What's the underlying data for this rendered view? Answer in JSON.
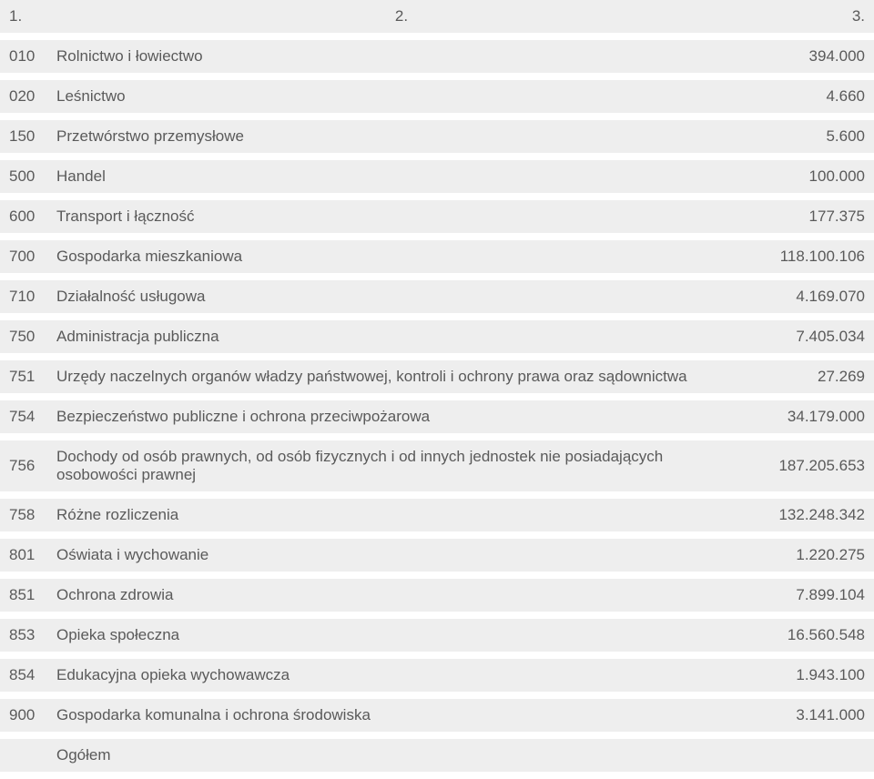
{
  "colors": {
    "row_bg": "#eeeeee",
    "header_bg": "#eeeeee",
    "text": "#5a5a5a",
    "page_bg": "#ffffff"
  },
  "header": {
    "c1": "1.",
    "c2": "2.",
    "c3": "3."
  },
  "rows": [
    {
      "code": "010",
      "name": "Rolnictwo i łowiectwo",
      "value": "394.000"
    },
    {
      "code": "020",
      "name": "Leśnictwo",
      "value": "4.660"
    },
    {
      "code": "150",
      "name": "Przetwórstwo przemysłowe",
      "value": "5.600"
    },
    {
      "code": "500",
      "name": "Handel",
      "value": "100.000"
    },
    {
      "code": "600",
      "name": "Transport i łączność",
      "value": "177.375"
    },
    {
      "code": "700",
      "name": "Gospodarka mieszkaniowa",
      "value": "118.100.106"
    },
    {
      "code": "710",
      "name": "Działalność usługowa",
      "value": "4.169.070"
    },
    {
      "code": "750",
      "name": "Administracja publiczna",
      "value": "7.405.034"
    },
    {
      "code": "751",
      "name": "Urzędy naczelnych organów władzy państwowej, kontroli i ochrony prawa oraz sądownictwa",
      "value": "27.269"
    },
    {
      "code": "754",
      "name": "Bezpieczeństwo publiczne i ochrona przeciwpożarowa",
      "value": "34.179.000"
    },
    {
      "code": "756",
      "name": "Dochody od osób prawnych, od osób fizycznych i od innych jednostek nie posiadających osobowości prawnej",
      "value": "187.205.653"
    },
    {
      "code": "758",
      "name": "Różne rozliczenia",
      "value": "132.248.342"
    },
    {
      "code": "801",
      "name": "Oświata i wychowanie",
      "value": "1.220.275"
    },
    {
      "code": "851",
      "name": "Ochrona zdrowia",
      "value": "7.899.104"
    },
    {
      "code": "853",
      "name": "Opieka społeczna",
      "value": "16.560.548"
    },
    {
      "code": "854",
      "name": "Edukacyjna opieka wychowawcza",
      "value": "1.943.100"
    },
    {
      "code": "900",
      "name": "Gospodarka komunalna i ochrona środowiska",
      "value": "3.141.000"
    },
    {
      "code": "",
      "name": "Ogółem",
      "value": ""
    }
  ]
}
